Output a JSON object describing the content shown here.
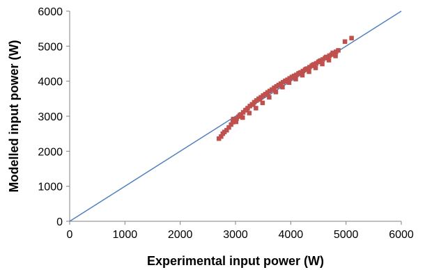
{
  "chart_data": {
    "type": "scatter",
    "title": "",
    "xlabel": "Experimental input power (W)",
    "ylabel": "Modelled input power (W)",
    "xlim": [
      0,
      6000
    ],
    "ylim": [
      0,
      6000
    ],
    "xticks": [
      "0",
      "1000",
      "2000",
      "3000",
      "4000",
      "5000",
      "6000"
    ],
    "yticks": [
      "0",
      "1000",
      "2000",
      "3000",
      "4000",
      "5000",
      "6000"
    ],
    "grid": false,
    "legend": "none",
    "series": [
      {
        "kind": "line",
        "color": "#4f81bd",
        "x": [
          0,
          6000
        ],
        "y": [
          0,
          6000
        ]
      },
      {
        "kind": "points",
        "marker": "square",
        "color": "#c0504d",
        "x": [
          2700,
          2740,
          2770,
          2800,
          2840,
          2880,
          2920,
          2950,
          2990,
          3020,
          3060,
          3100,
          3140,
          3180,
          3220,
          3260,
          3300,
          3340,
          3380,
          3420,
          3460,
          3500,
          3540,
          3580,
          3620,
          3660,
          3700,
          3740,
          3780,
          3820,
          3860,
          3900,
          3940,
          3980,
          4020,
          4060,
          4100,
          4140,
          4180,
          4220,
          4260,
          4300,
          4340,
          4380,
          4420,
          4460,
          4500,
          4540,
          4580,
          4620,
          4660,
          4700,
          4740,
          4780,
          4820,
          4860,
          4980,
          5100,
          2960,
          3080,
          3200,
          3320,
          3440,
          3560,
          3680,
          3800,
          3920,
          4040,
          4160,
          4280,
          4400,
          4520,
          4640,
          4760,
          3010,
          3130,
          3250,
          3370,
          3490,
          3610,
          3730,
          3850,
          3970,
          4090,
          4210,
          4330,
          4450,
          4570,
          4690,
          4810
        ],
        "y": [
          2360,
          2420,
          2500,
          2550,
          2600,
          2680,
          2760,
          2830,
          2880,
          2930,
          2990,
          3050,
          3110,
          3170,
          3230,
          3290,
          3340,
          3400,
          3450,
          3500,
          3540,
          3590,
          3630,
          3680,
          3720,
          3760,
          3810,
          3850,
          3890,
          3930,
          3970,
          4010,
          4040,
          4080,
          4120,
          4150,
          4180,
          4220,
          4250,
          4290,
          4330,
          4360,
          4400,
          4440,
          4480,
          4510,
          4550,
          4590,
          4620,
          4660,
          4690,
          4730,
          4760,
          4800,
          4840,
          4880,
          5130,
          5230,
          2920,
          3030,
          3180,
          3330,
          3480,
          3630,
          3760,
          3880,
          4000,
          4110,
          4230,
          4350,
          4460,
          4570,
          4690,
          4810,
          2840,
          2960,
          3090,
          3230,
          3380,
          3540,
          3690,
          3830,
          3960,
          4060,
          4170,
          4270,
          4380,
          4490,
          4600,
          4720
        ]
      }
    ]
  }
}
